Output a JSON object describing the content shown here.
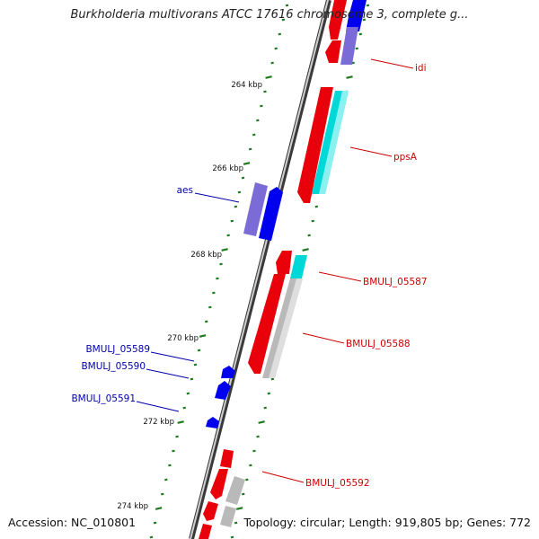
{
  "title": "Burkholderia multivorans ATCC 17616 chromosome 3, complete g...",
  "footer": {
    "accession": "Accession: NC_010801",
    "summary": "Topology: circular; Length: 919,805 bp; Genes: 772"
  },
  "colors": {
    "forward_gene": "#e8000b",
    "reverse_gene": "#0000ee",
    "reverse_gene_light": "#7b6bd6",
    "cyan": "#00d8d8",
    "grey": "#b9b9b9",
    "tick": "#1f7a1f",
    "label_forward": "#cc0000",
    "label_reverse": "#0000aa"
  },
  "scale_labels": [
    "264 kbp",
    "266 kbp",
    "268 kbp",
    "270 kbp",
    "272 kbp",
    "274 kbp"
  ],
  "gene_labels": {
    "idi": "idi",
    "ppsA": "ppsA",
    "aes": "aes",
    "bmulj_05587": "BMULJ_05587",
    "bmulj_05588": "BMULJ_05588",
    "bmulj_05589": "BMULJ_05589",
    "bmulj_05590": "BMULJ_05590",
    "bmulj_05591": "BMULJ_05591",
    "bmulj_05592": "BMULJ_05592"
  }
}
